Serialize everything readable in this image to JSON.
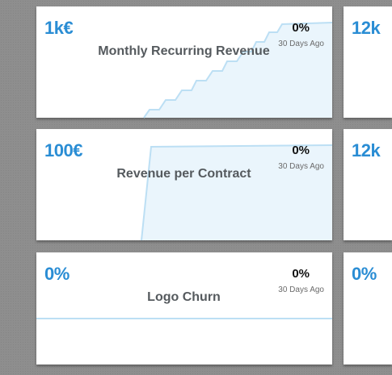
{
  "colors": {
    "accent": "#2a8dd4",
    "spark_line": "#bcdff4",
    "spark_fill": "#eaf5fc"
  },
  "cards": [
    {
      "value": "1k€",
      "title": "Monthly Recurring Revenue",
      "change": "0%",
      "period": "30 Days Ago",
      "sparkline": [
        0,
        0.05,
        0.12,
        0.2,
        0.3,
        0.4,
        0.5,
        0.6,
        0.7,
        0.82,
        0.92,
        1,
        1,
        1
      ]
    },
    {
      "value": "100€",
      "title": "Revenue per Contract",
      "change": "0%",
      "period": "30 Days Ago",
      "sparkline": [
        0,
        0,
        1,
        1,
        1,
        1,
        1,
        1,
        1,
        1,
        1,
        1,
        1,
        1
      ]
    },
    {
      "value": "0%",
      "title": "Logo Churn",
      "change": "0%",
      "period": "30 Days Ago",
      "sparkline": [
        0,
        0,
        0,
        0,
        0,
        0,
        0,
        0,
        0,
        0,
        0,
        0,
        0,
        0
      ]
    }
  ],
  "right_cards": [
    {
      "value": "12k"
    },
    {
      "value": "12k"
    },
    {
      "value": "0%"
    }
  ]
}
